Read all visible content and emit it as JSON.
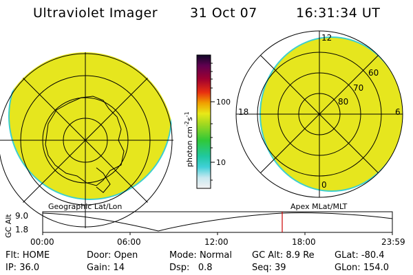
{
  "header": {
    "title": "Ultraviolet Imager",
    "date": "31 Oct 07",
    "time": "16:31:34 UT"
  },
  "colorbar": {
    "unit": "photon cm",
    "unit_sup1": "-2",
    "unit_s": "s",
    "unit_sup2": "-1",
    "ticks": [
      "100",
      "10"
    ]
  },
  "right_map": {
    "mlt_labels": {
      "top": "12",
      "left": "18",
      "right": "6",
      "bottom": "0"
    },
    "lat_labels": [
      "60",
      "70",
      "80"
    ]
  },
  "panel_labels": {
    "left": "Geographic Lat/Lon",
    "right": "Apex MLat/MLT"
  },
  "altitude_plot": {
    "ylabel": "GC Alt",
    "yticks": [
      "9.0",
      "1.8"
    ],
    "xticks": [
      "00:00",
      "06:00",
      "12:00",
      "18:00",
      "23:59"
    ]
  },
  "info": {
    "filter": {
      "label": "Flt:",
      "value": "HOME"
    },
    "ip": {
      "label": "IP:",
      "value": "36.0"
    },
    "door": {
      "label": "Door:",
      "value": "Open"
    },
    "gain": {
      "label": "Gain:",
      "value": "14"
    },
    "mode": {
      "label": "Mode:",
      "value": "Normal"
    },
    "dsp": {
      "label": "Dsp:",
      "value": "0.8"
    },
    "gcalt": {
      "label": "GC Alt:",
      "value": "8.9 Re"
    },
    "seq": {
      "label": "Seq:",
      "value": "39"
    },
    "glat": {
      "label": "GLat:",
      "value": "-80.4"
    },
    "glon": {
      "label": "GLon:",
      "value": "154.0"
    }
  },
  "colors": {
    "fill": "#e6e61e",
    "edge": "#3ccfcf",
    "marker": "#cc0000"
  }
}
